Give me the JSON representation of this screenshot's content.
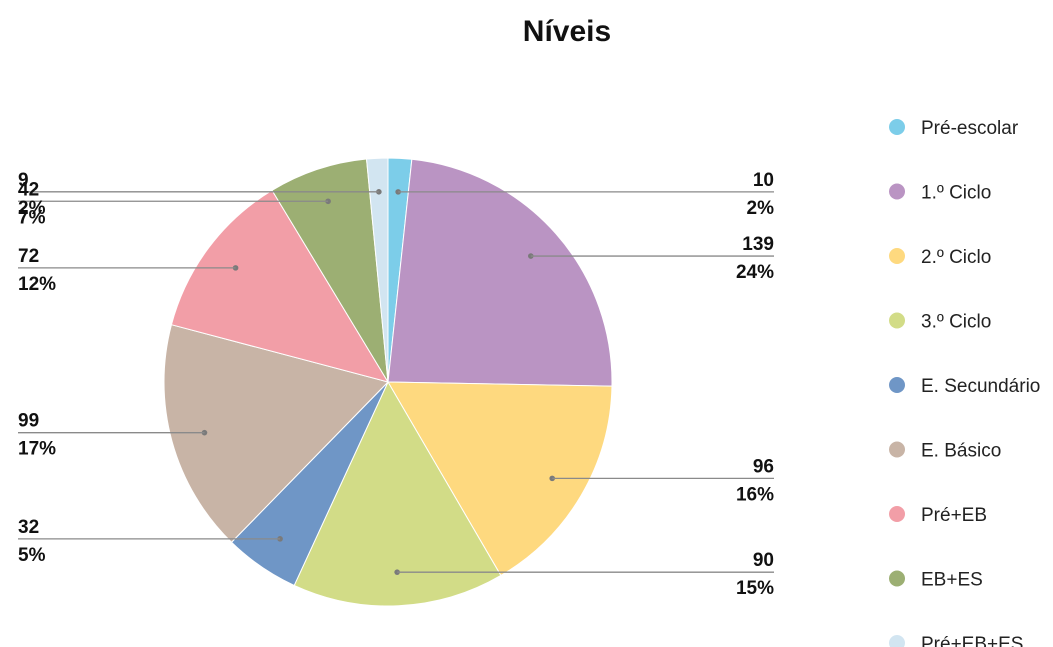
{
  "chart_data": {
    "type": "pie",
    "title": "Níveis",
    "legend_position": "right",
    "categories": [
      "Pré-escolar",
      "1.º Ciclo",
      "2.º Ciclo",
      "3.º Ciclo",
      "E. Secundário",
      "E. Básico",
      "Pré+EB",
      "EB+ES",
      "Pré+EB+ES"
    ],
    "values": [
      10,
      139,
      96,
      90,
      32,
      99,
      72,
      42,
      9
    ],
    "percent_labels": [
      "2%",
      "24%",
      "16%",
      "15%",
      "5%",
      "17%",
      "12%",
      "7%",
      "2%"
    ],
    "colors": [
      "#7ccde9",
      "#ba94c3",
      "#fed97f",
      "#d2dc87",
      "#6f96c6",
      "#c8b4a6",
      "#f29ea7",
      "#9caf73",
      "#d2e5f1"
    ]
  }
}
